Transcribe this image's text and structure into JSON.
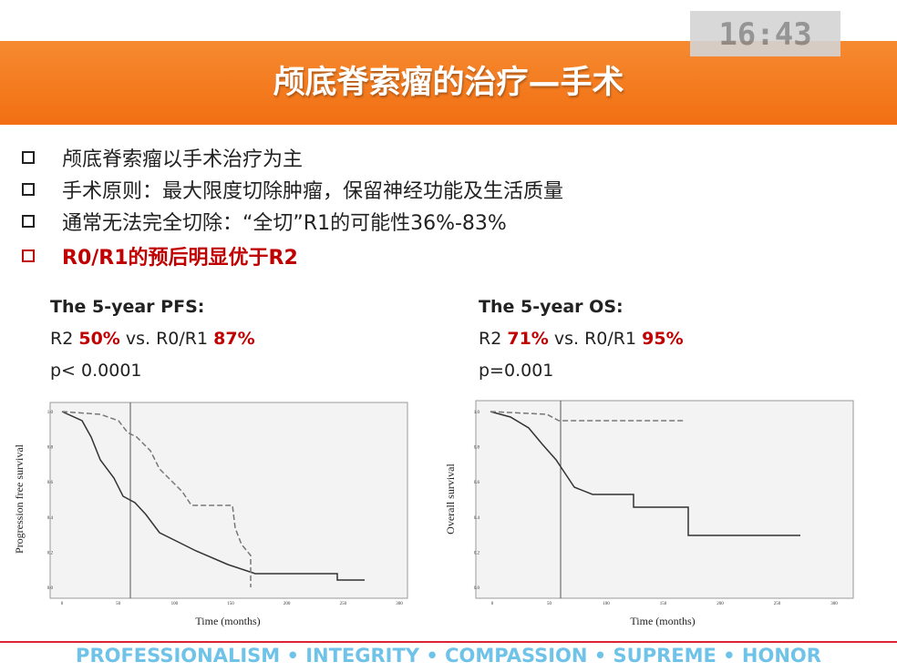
{
  "clock": "16:43",
  "header": {
    "title": "颅底脊索瘤的治疗—手术"
  },
  "bullets": [
    "颅底脊索瘤以手术治疗为主",
    "手术原则：最大限度切除肿瘤，保留神经功能及生活质量",
    "通常无法完全切除：“全切”R1的可能性36%-83%",
    "R0/R1的预后明显优于R2"
  ],
  "stats": [
    {
      "title": "The 5-year PFS:",
      "line": [
        "R2 ",
        "50%",
        " vs. R0/R1 ",
        "87%"
      ],
      "p": "p< 0.0001"
    },
    {
      "title": "The 5-year OS:",
      "line": [
        "R2 ",
        "71%",
        " vs. R0/R1 ",
        "95%"
      ],
      "p": "p=0.001"
    }
  ],
  "figures": [
    {
      "y_label": "Progression free survival",
      "x_label": "Time (months)",
      "yticks": [
        "0.0",
        "0.2",
        "0.4",
        "0.6",
        "0.8",
        "1.0"
      ],
      "xticks": [
        "0",
        "50",
        "100",
        "150",
        "200",
        "250",
        "300"
      ]
    },
    {
      "y_label": "Overall survival",
      "x_label": "Time (months)",
      "yticks": [
        "0.0",
        "0.2",
        "0.4",
        "0.6",
        "0.8",
        "1.0"
      ],
      "xticks": [
        "0",
        "50",
        "100",
        "150",
        "200",
        "250",
        "300"
      ]
    }
  ],
  "footer": "PROFESSIONALISM • INTEGRITY • COMPASSION • SUPREME • HONOR"
}
